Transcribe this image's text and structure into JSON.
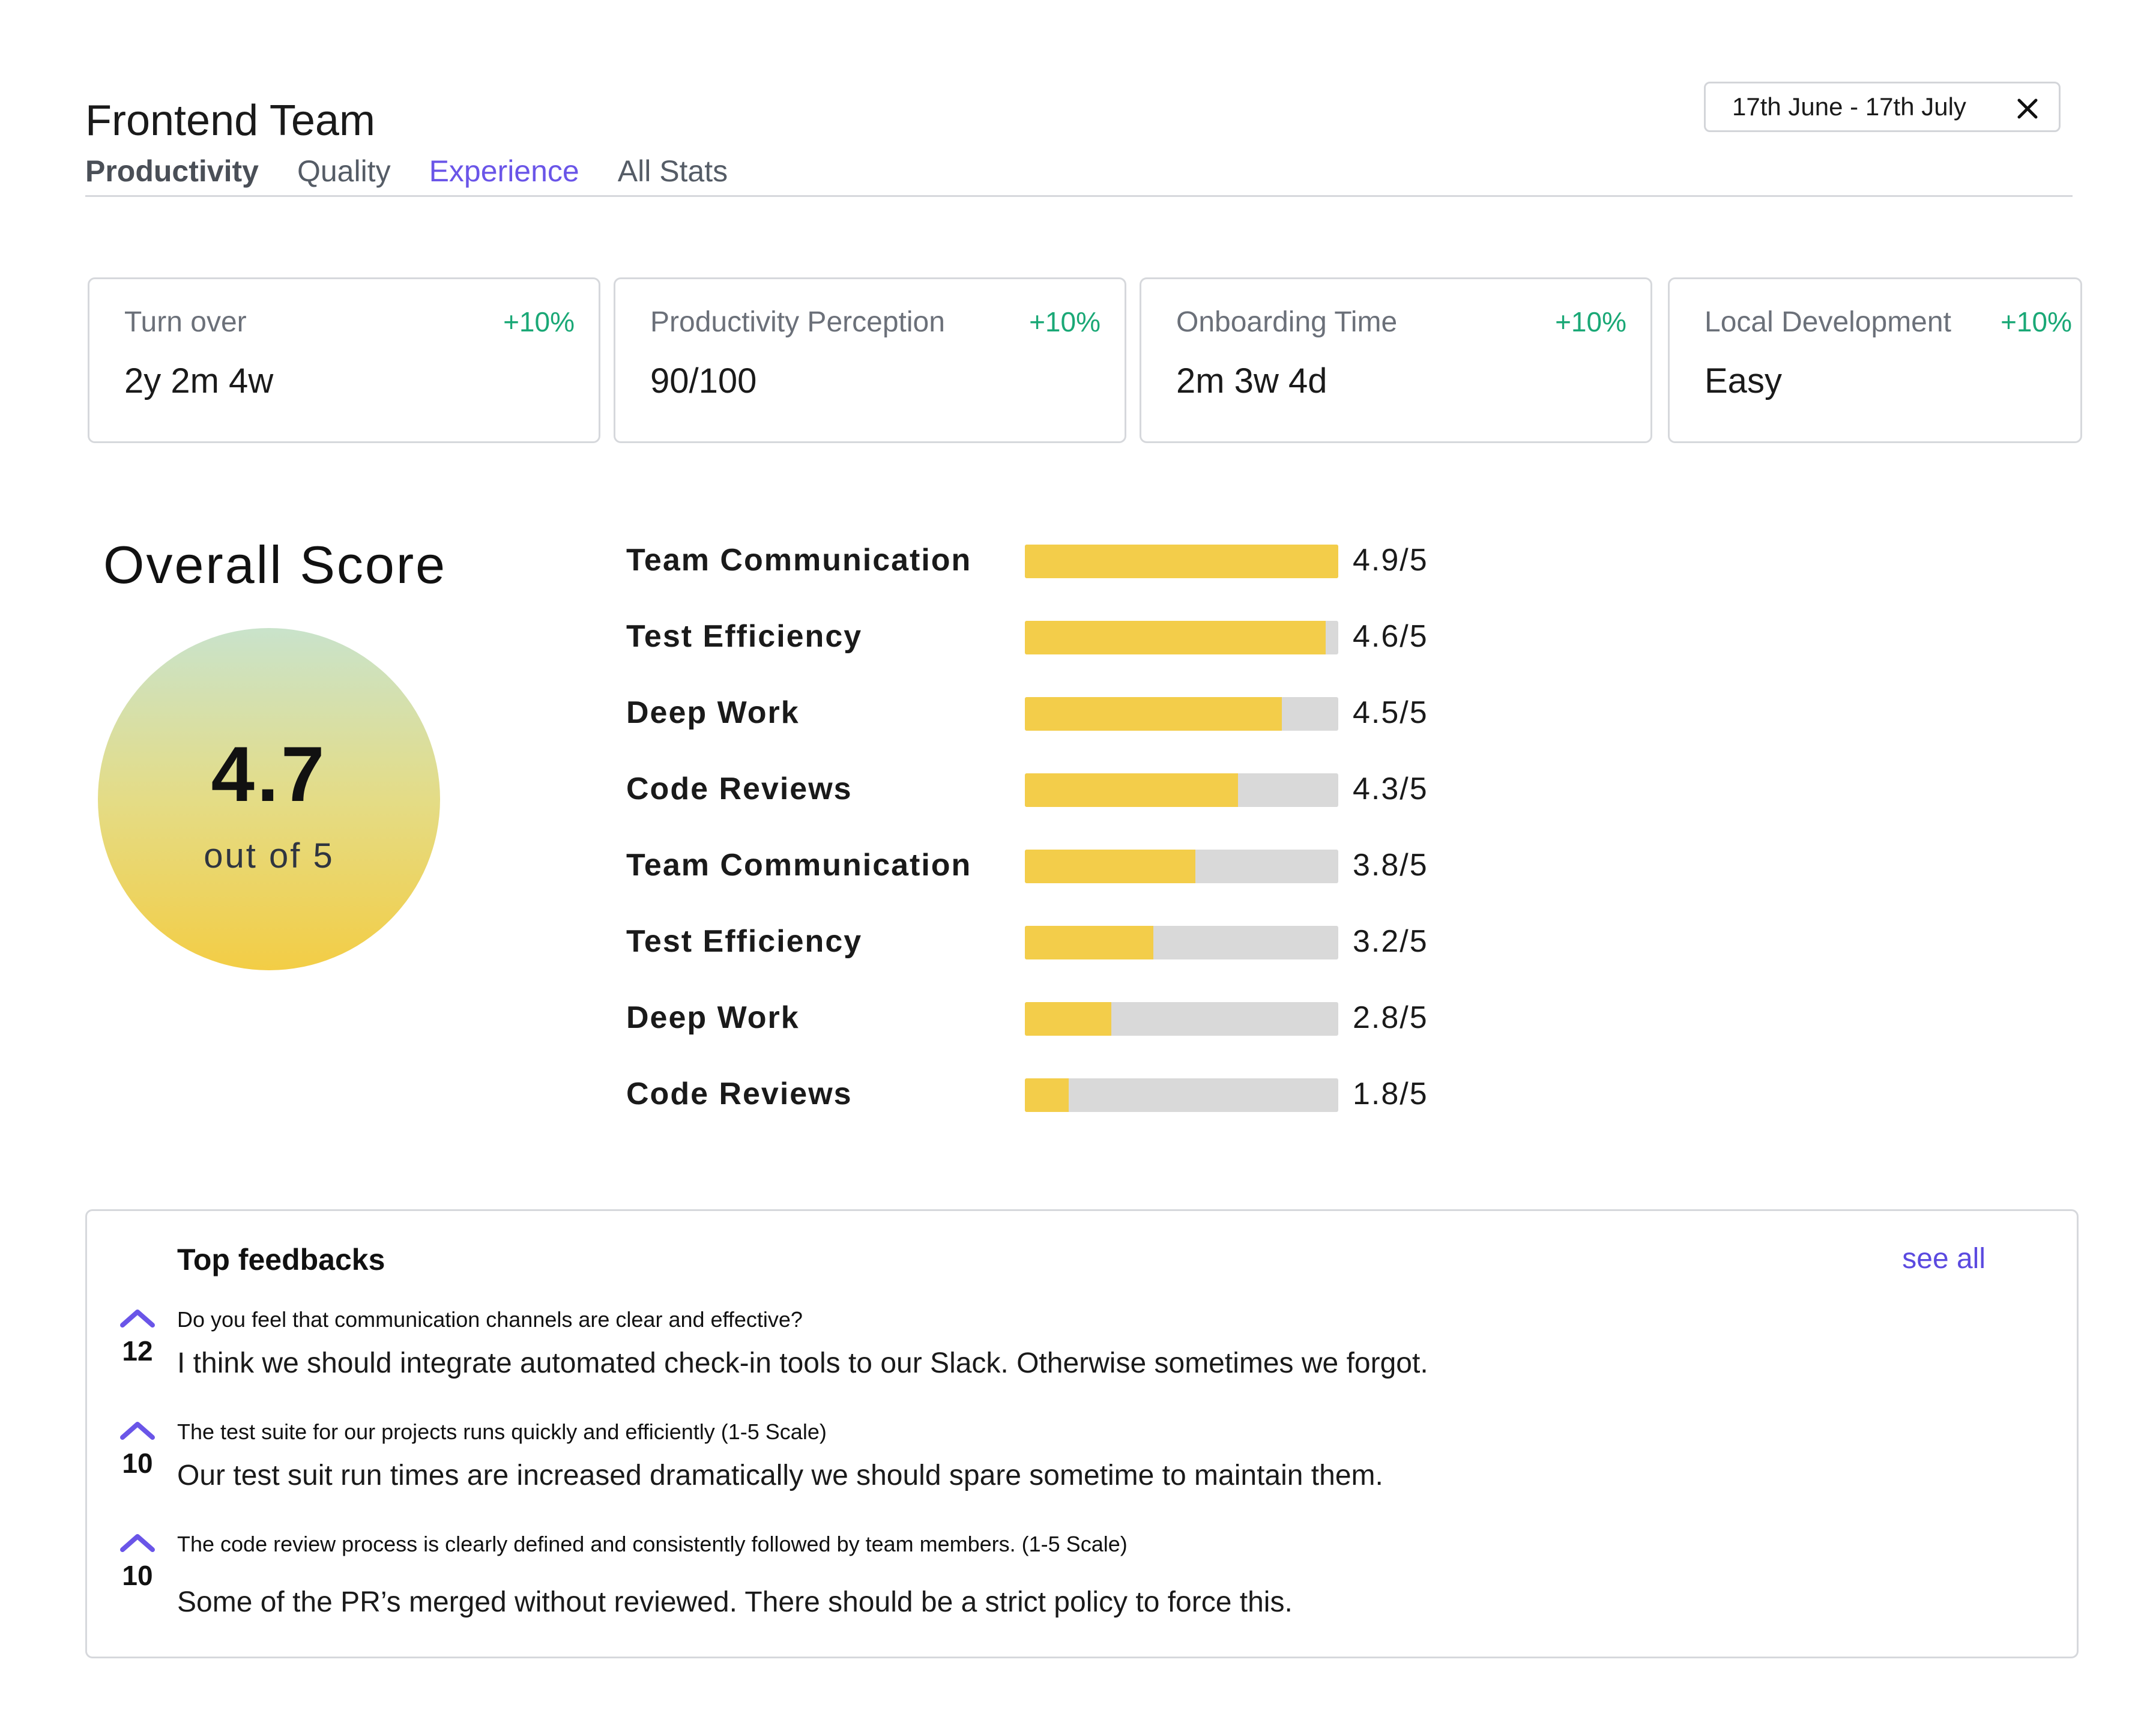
{
  "header": {
    "title": "Frontend Team",
    "tabs": [
      {
        "label": "Productivity"
      },
      {
        "label": "Quality"
      },
      {
        "label": "Experience"
      },
      {
        "label": "All Stats"
      }
    ],
    "date_range": "17th June - 17th July"
  },
  "stats": [
    {
      "label": "Turn over",
      "change": "+10%",
      "value": "2y 2m 4w"
    },
    {
      "label": "Productivity Perception",
      "change": "+10%",
      "value": "90/100"
    },
    {
      "label": "Onboarding Time",
      "change": "+10%",
      "value": "2m 3w 4d"
    },
    {
      "label": "Local Development",
      "change": "+10%",
      "value": "Easy"
    }
  ],
  "overall": {
    "title": "Overall Score",
    "score": "4.7",
    "subtitle": "out of 5"
  },
  "scores": [
    {
      "label": "Team Communication",
      "value": 4.9,
      "display": "4.9/5"
    },
    {
      "label": "Test Efficiency",
      "value": 4.6,
      "display": "4.6/5"
    },
    {
      "label": "Deep Work",
      "value": 4.5,
      "display": "4.5/5"
    },
    {
      "label": "Code Reviews",
      "value": 4.3,
      "display": "4.3/5"
    },
    {
      "label": "Team Communication",
      "value": 3.8,
      "display": "3.8/5"
    },
    {
      "label": "Test Efficiency",
      "value": 3.2,
      "display": "3.2/5"
    },
    {
      "label": "Deep Work",
      "value": 2.8,
      "display": "2.8/5"
    },
    {
      "label": "Code Reviews",
      "value": 1.8,
      "display": "1.8/5"
    }
  ],
  "bar_fill_fractions": [
    1.0,
    0.96,
    0.82,
    0.68,
    0.545,
    0.41,
    0.275,
    0.14
  ],
  "feedback": {
    "title": "Top feedbacks",
    "see_all": "see all",
    "items": [
      {
        "votes": "12",
        "question": "Do you feel that communication channels are clear and effective?",
        "answer": "I think we should integrate automated check-in tools to our Slack. Otherwise sometimes we forgot."
      },
      {
        "votes": "10",
        "question": "The test suite for our projects runs quickly and efficiently (1-5 Scale)",
        "answer": "Our test suit run times are increased dramatically we should spare sometime to maintain them."
      },
      {
        "votes": "10",
        "question": "The code review process is clearly defined and consistently followed by team members. (1-5 Scale)",
        "answer": "Some of the PR’s merged without reviewed. There should be a strict policy to force this."
      }
    ]
  },
  "colors": {
    "accent": "#6a55e8",
    "positive": "#1aa876",
    "bar_fill": "#f3cd4a",
    "bar_track": "#d9d9d9"
  },
  "icons": {
    "close": "close-icon",
    "upvote": "chevron-up-icon"
  }
}
